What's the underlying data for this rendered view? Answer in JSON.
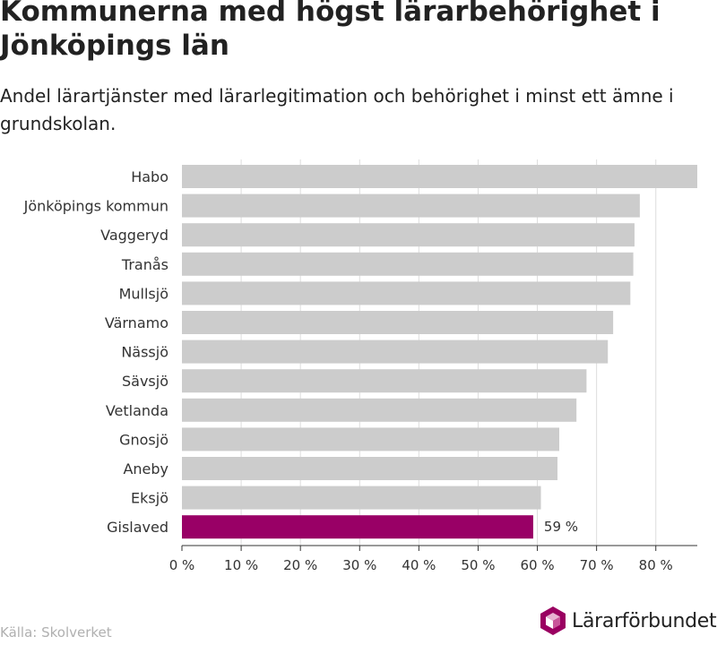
{
  "title": "Kommunerna med högst lärarbehörighet i Jönköpings län",
  "subtitle": "Andel lärartjänster med lärarlegitimation och behörighet i minst ett ämne i grundskolan.",
  "source": "Källa: Skolverket",
  "brand": {
    "name": "Lärarförbundet",
    "color": "#9a0061",
    "icon": "hexagon-cube-logo-icon"
  },
  "colors": {
    "bar": "#cccccc",
    "highlight": "#990066",
    "grid": "#dddddd",
    "axis": "#333333"
  },
  "chart_data": {
    "type": "bar",
    "orientation": "horizontal",
    "categories": [
      "Habo",
      "Jönköpings kommun",
      "Vaggeryd",
      "Tranås",
      "Mullsjö",
      "Värnamo",
      "Nässjö",
      "Sävsjö",
      "Vetlanda",
      "Gnosjö",
      "Aneby",
      "Eksjö",
      "Gislaved"
    ],
    "values": [
      87,
      77.3,
      76.4,
      76.2,
      75.7,
      72.8,
      71.9,
      68.3,
      66.6,
      63.7,
      63.4,
      60.6,
      59.3
    ],
    "highlight": "Gislaved",
    "data_labels": {
      "Gislaved": "59 %"
    },
    "xlim": [
      0,
      87
    ],
    "ticks": [
      0,
      10,
      20,
      30,
      40,
      50,
      60,
      70,
      80
    ],
    "tick_labels": [
      "0 %",
      "10 %",
      "20 %",
      "30 %",
      "40 %",
      "50 %",
      "60 %",
      "70 %",
      "80 %"
    ],
    "grid": true
  }
}
